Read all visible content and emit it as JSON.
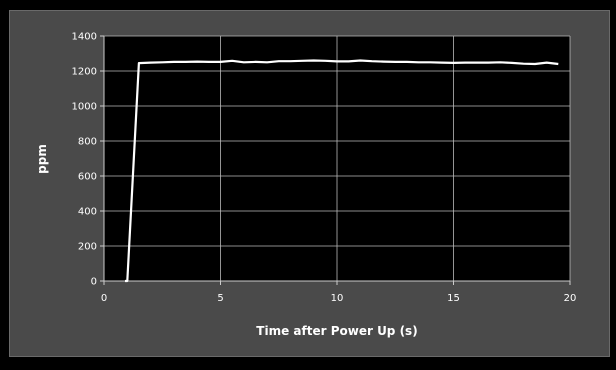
{
  "chart_data": {
    "type": "line",
    "title": "",
    "xlabel": "Time after Power Up (s)",
    "ylabel": "ppm",
    "xlim": [
      0,
      20
    ],
    "ylim": [
      0,
      1400
    ],
    "x_ticks": [
      0,
      5,
      10,
      15,
      20
    ],
    "y_ticks": [
      0,
      200,
      400,
      600,
      800,
      1000,
      1200,
      1400
    ],
    "grid": true,
    "legend": "none",
    "colors": {
      "background": "#000000",
      "frame": "#4a4a4a",
      "plot_area": "#000000",
      "series": "#ffffff",
      "grid": "#bbbbbb"
    },
    "series": [
      {
        "x": [
          0.9,
          1.0,
          1.5,
          2.0,
          2.5,
          3.0,
          3.5,
          4.0,
          4.5,
          5.0,
          5.5,
          6.0,
          6.5,
          7.0,
          7.5,
          8.0,
          8.5,
          9.0,
          9.5,
          10.0,
          10.5,
          11.0,
          11.5,
          12.0,
          12.5,
          13.0,
          13.5,
          14.0,
          14.5,
          15.0,
          15.5,
          16.0,
          16.5,
          17.0,
          17.5,
          18.0,
          18.5,
          19.0,
          19.5
        ],
        "y": [
          0,
          0,
          1245,
          1248,
          1250,
          1252,
          1252,
          1254,
          1252,
          1252,
          1258,
          1250,
          1252,
          1250,
          1256,
          1256,
          1258,
          1260,
          1258,
          1255,
          1255,
          1260,
          1256,
          1254,
          1252,
          1252,
          1250,
          1250,
          1248,
          1246,
          1248,
          1248,
          1248,
          1250,
          1246,
          1242,
          1240,
          1248,
          1240
        ]
      }
    ]
  }
}
